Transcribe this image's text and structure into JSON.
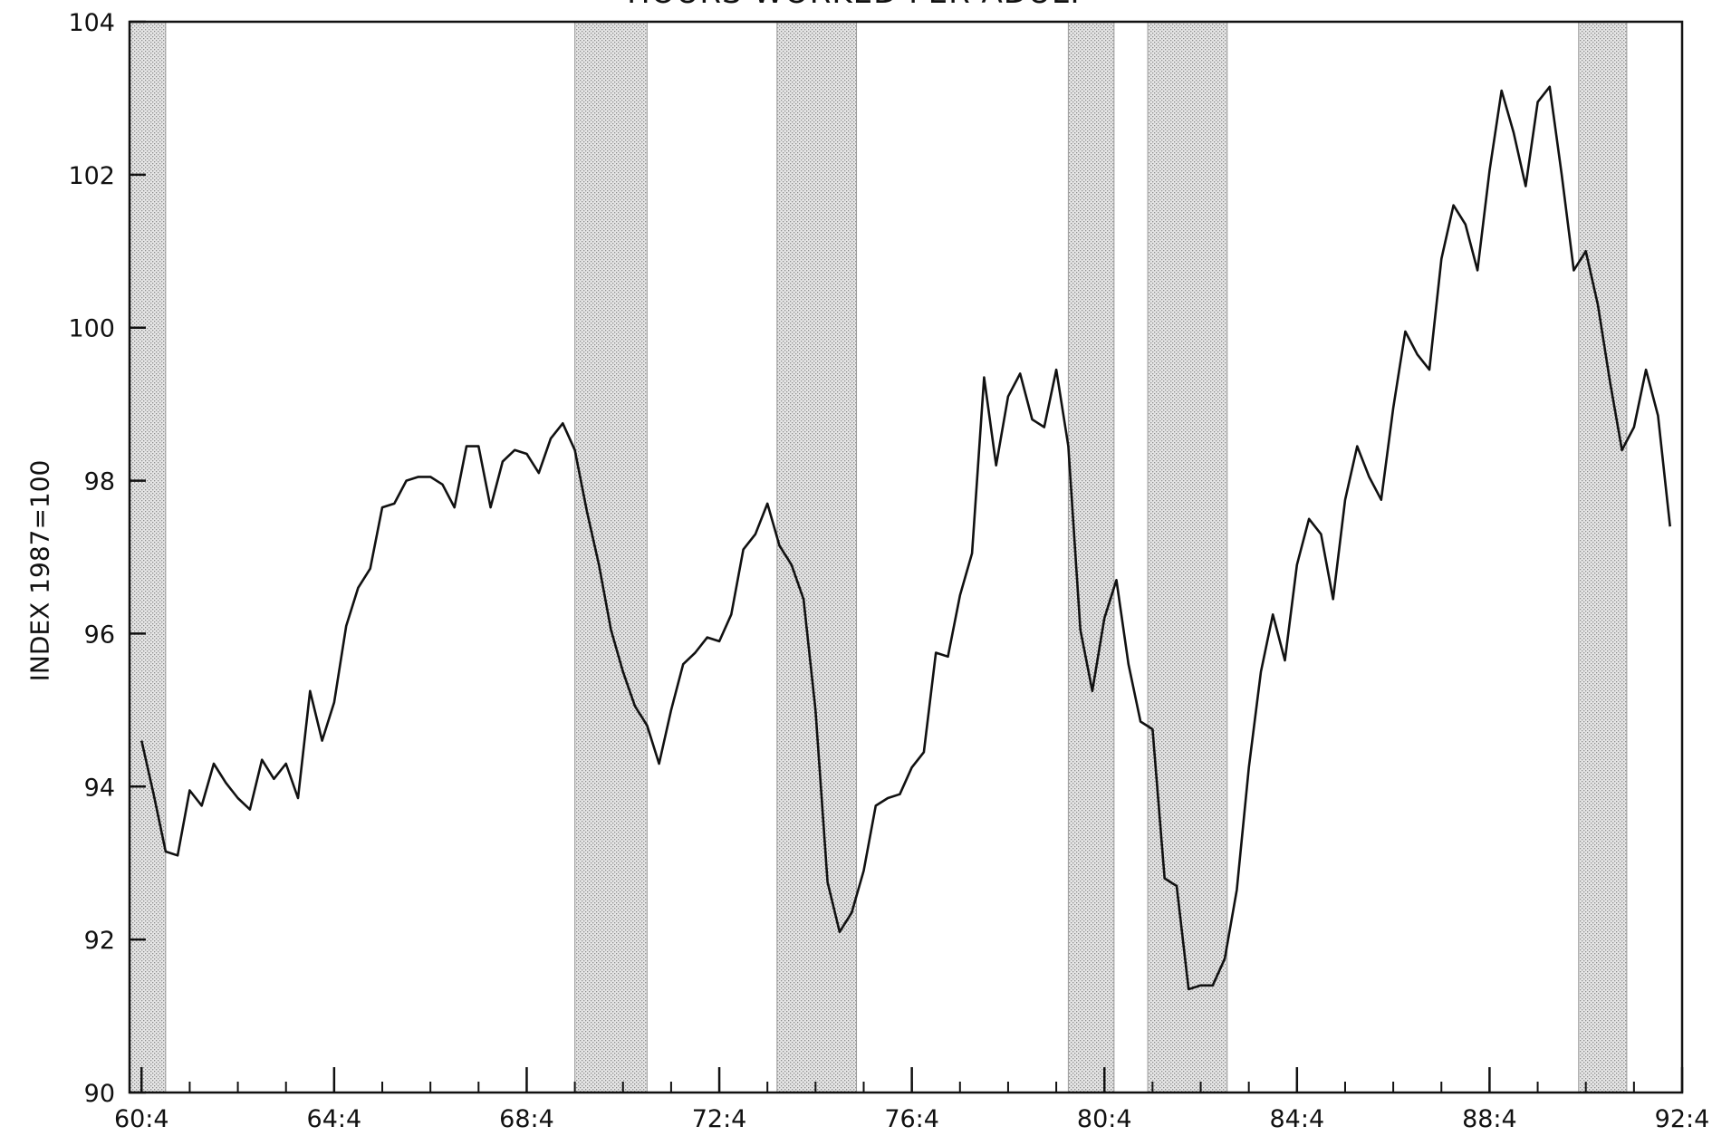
{
  "chart_data": {
    "type": "line",
    "title": "HOURS WORKED PER ADULT",
    "xlabel": "",
    "ylabel": "INDEX 1987=100",
    "xlim": [
      1960.5,
      1992.75
    ],
    "ylim": [
      90,
      104
    ],
    "yticks": [
      90,
      92,
      94,
      96,
      98,
      100,
      102,
      104
    ],
    "ytick_labels": [
      "90",
      "92",
      "94",
      "96",
      "98",
      "100",
      "102",
      "104"
    ],
    "xticks": [
      1960.75,
      1964.75,
      1968.75,
      1972.75,
      1976.75,
      1980.75,
      1984.75,
      1988.75,
      1992.75
    ],
    "xtick_labels": [
      "60:4",
      "64:4",
      "68:4",
      "72:4",
      "76:4",
      "80:4",
      "84:4",
      "88:4",
      "92:4"
    ],
    "grid": false,
    "recessions": [
      [
        1960.5,
        1961.25
      ],
      [
        1969.75,
        1971.25
      ],
      [
        1973.95,
        1975.6
      ],
      [
        1980.0,
        1980.95
      ],
      [
        1981.65,
        1983.3
      ],
      [
        1990.6,
        1991.6
      ]
    ],
    "series": [
      {
        "x_start": 1960.75,
        "x_step": 0.25,
        "values": [
          94.6,
          93.9,
          93.15,
          93.1,
          93.95,
          93.75,
          94.3,
          94.05,
          93.85,
          93.7,
          94.35,
          94.1,
          94.3,
          93.85,
          95.25,
          94.6,
          95.1,
          96.1,
          96.6,
          96.85,
          97.65,
          97.7,
          98.0,
          98.05,
          98.05,
          97.95,
          97.65,
          98.45,
          98.45,
          97.65,
          98.25,
          98.4,
          98.35,
          98.1,
          98.55,
          98.75,
          98.4,
          97.6,
          96.9,
          96.05,
          95.5,
          95.05,
          94.8,
          94.3,
          95.0,
          95.6,
          95.75,
          95.95,
          95.9,
          96.25,
          97.1,
          97.3,
          97.7,
          97.15,
          96.9,
          96.45,
          95.0,
          92.75,
          92.1,
          92.35,
          92.9,
          93.75,
          93.85,
          93.9,
          94.25,
          94.45,
          95.75,
          95.7,
          96.5,
          97.05,
          99.35,
          98.2,
          99.1,
          99.4,
          98.8,
          98.7,
          99.45,
          98.45,
          96.05,
          95.25,
          96.2,
          96.7,
          95.6,
          94.85,
          94.75,
          92.8,
          92.7,
          91.35,
          91.4,
          91.4,
          91.75,
          92.65,
          94.25,
          95.5,
          96.25,
          95.65,
          96.9,
          97.5,
          97.3,
          96.45,
          97.75,
          98.45,
          98.05,
          97.75,
          98.95,
          99.95,
          99.65,
          99.45,
          100.9,
          101.6,
          101.35,
          100.75,
          102.05,
          103.1,
          102.55,
          101.85,
          102.95,
          103.15,
          102.0,
          100.75,
          101.0,
          100.3,
          99.3,
          98.4,
          98.7,
          99.45,
          98.85,
          97.4
        ]
      }
    ]
  }
}
